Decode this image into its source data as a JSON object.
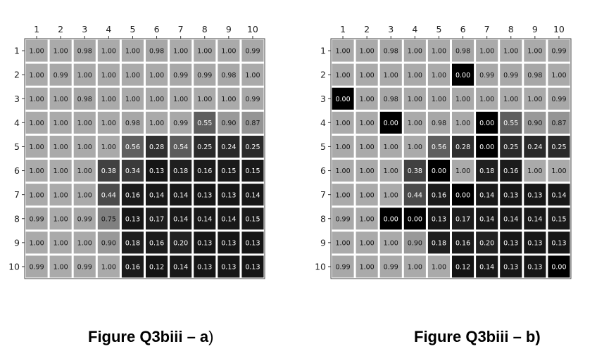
{
  "figures": [
    {
      "caption_main": "Figure Q3biii – a",
      "caption_tail": ")"
    },
    {
      "caption_main": "Figure Q3biii – b)",
      "caption_tail": ""
    }
  ],
  "chart_data": [
    {
      "type": "heatmap",
      "x_ticks": [
        "1",
        "2",
        "3",
        "4",
        "5",
        "6",
        "7",
        "8",
        "9",
        "10"
      ],
      "y_ticks": [
        "1",
        "2",
        "3",
        "4",
        "5",
        "6",
        "7",
        "8",
        "9",
        "10"
      ],
      "colormap": "grayscale",
      "values": [
        [
          "1.00",
          "1.00",
          "0.98",
          "1.00",
          "1.00",
          "0.98",
          "1.00",
          "1.00",
          "1.00",
          "0.99"
        ],
        [
          "1.00",
          "0.99",
          "1.00",
          "1.00",
          "1.00",
          "1.00",
          "0.99",
          "0.99",
          "0.98",
          "1.00"
        ],
        [
          "1.00",
          "1.00",
          "0.98",
          "1.00",
          "1.00",
          "1.00",
          "1.00",
          "1.00",
          "1.00",
          "0.99"
        ],
        [
          "1.00",
          "1.00",
          "1.00",
          "1.00",
          "0.98",
          "1.00",
          "0.99",
          "0.55",
          "0.90",
          "0.87"
        ],
        [
          "1.00",
          "1.00",
          "1.00",
          "1.00",
          "0.56",
          "0.28",
          "0.54",
          "0.25",
          "0.24",
          "0.25"
        ],
        [
          "1.00",
          "1.00",
          "1.00",
          "0.38",
          "0.34",
          "0.13",
          "0.18",
          "0.16",
          "0.15",
          "0.15"
        ],
        [
          "1.00",
          "1.00",
          "1.00",
          "0.44",
          "0.16",
          "0.14",
          "0.14",
          "0.13",
          "0.13",
          "0.14"
        ],
        [
          "0.99",
          "1.00",
          "0.99",
          "0.75",
          "0.13",
          "0.17",
          "0.14",
          "0.14",
          "0.14",
          "0.15"
        ],
        [
          "1.00",
          "1.00",
          "1.00",
          "0.90",
          "0.18",
          "0.16",
          "0.20",
          "0.13",
          "0.13",
          "0.13"
        ],
        [
          "0.99",
          "1.00",
          "0.99",
          "1.00",
          "0.16",
          "0.12",
          "0.14",
          "0.13",
          "0.13",
          "0.13"
        ]
      ]
    },
    {
      "type": "heatmap",
      "x_ticks": [
        "1",
        "2",
        "3",
        "4",
        "5",
        "6",
        "7",
        "8",
        "9",
        "10"
      ],
      "y_ticks": [
        "1",
        "2",
        "3",
        "4",
        "5",
        "6",
        "7",
        "8",
        "9",
        "10"
      ],
      "colormap": "grayscale",
      "values": [
        [
          "1.00",
          "1.00",
          "0.98",
          "1.00",
          "1.00",
          "0.98",
          "1.00",
          "1.00",
          "1.00",
          "0.99"
        ],
        [
          "1.00",
          "1.00",
          "1.00",
          "1.00",
          "1.00",
          "0.00",
          "0.99",
          "0.99",
          "0.98",
          "1.00"
        ],
        [
          "0.00",
          "1.00",
          "0.98",
          "1.00",
          "1.00",
          "1.00",
          "1.00",
          "1.00",
          "1.00",
          "0.99"
        ],
        [
          "1.00",
          "1.00",
          "0.00",
          "1.00",
          "0.98",
          "1.00",
          "0.00",
          "0.55",
          "0.90",
          "0.87"
        ],
        [
          "1.00",
          "1.00",
          "1.00",
          "1.00",
          "0.56",
          "0.28",
          "0.00",
          "0.25",
          "0.24",
          "0.25"
        ],
        [
          "1.00",
          "1.00",
          "1.00",
          "0.38",
          "0.00",
          "1.00",
          "0.18",
          "0.16",
          "1.00",
          "1.00"
        ],
        [
          "1.00",
          "1.00",
          "1.00",
          "0.44",
          "0.16",
          "0.00",
          "0.14",
          "0.13",
          "0.13",
          "0.14"
        ],
        [
          "0.99",
          "1.00",
          "0.00",
          "0.00",
          "0.13",
          "0.17",
          "0.14",
          "0.14",
          "0.14",
          "0.15"
        ],
        [
          "1.00",
          "1.00",
          "1.00",
          "0.90",
          "0.18",
          "0.16",
          "0.20",
          "0.13",
          "0.13",
          "0.13"
        ],
        [
          "0.99",
          "1.00",
          "0.99",
          "1.00",
          "1.00",
          "0.12",
          "0.14",
          "0.13",
          "0.13",
          "0.00"
        ]
      ]
    }
  ]
}
